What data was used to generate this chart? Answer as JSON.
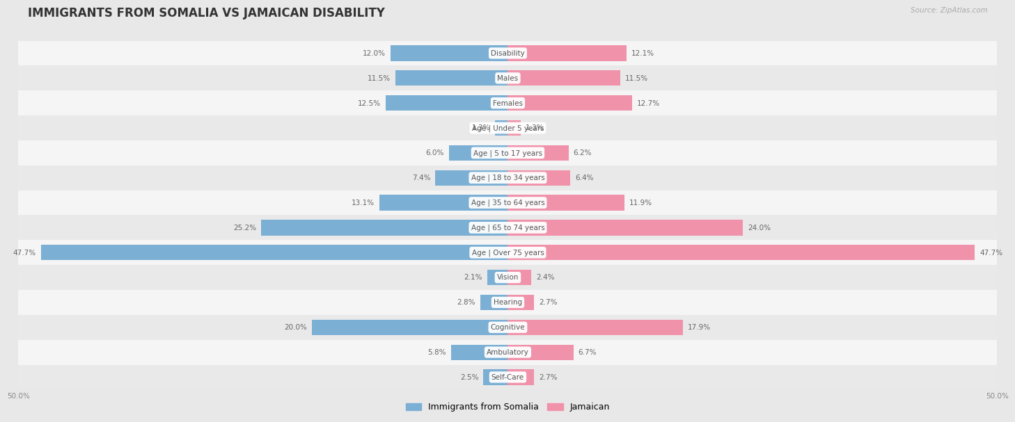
{
  "title": "IMMIGRANTS FROM SOMALIA VS JAMAICAN DISABILITY",
  "source": "Source: ZipAtlas.com",
  "categories": [
    "Disability",
    "Males",
    "Females",
    "Age | Under 5 years",
    "Age | 5 to 17 years",
    "Age | 18 to 34 years",
    "Age | 35 to 64 years",
    "Age | 65 to 74 years",
    "Age | Over 75 years",
    "Vision",
    "Hearing",
    "Cognitive",
    "Ambulatory",
    "Self-Care"
  ],
  "somalia_values": [
    12.0,
    11.5,
    12.5,
    1.3,
    6.0,
    7.4,
    13.1,
    25.2,
    47.7,
    2.1,
    2.8,
    20.0,
    5.8,
    2.5
  ],
  "jamaican_values": [
    12.1,
    11.5,
    12.7,
    1.3,
    6.2,
    6.4,
    11.9,
    24.0,
    47.7,
    2.4,
    2.7,
    17.9,
    6.7,
    2.7
  ],
  "somalia_color": "#7bafd4",
  "jamaican_color": "#f092aa",
  "somalia_label": "Immigrants from Somalia",
  "jamaican_label": "Jamaican",
  "axis_max": 50.0,
  "bar_height": 0.62,
  "bg_color": "#e8e8e8",
  "row_colors": [
    "#f5f5f5",
    "#e9e9e9"
  ],
  "title_fontsize": 12,
  "value_fontsize": 7.5,
  "cat_fontsize": 7.5,
  "legend_fontsize": 9
}
